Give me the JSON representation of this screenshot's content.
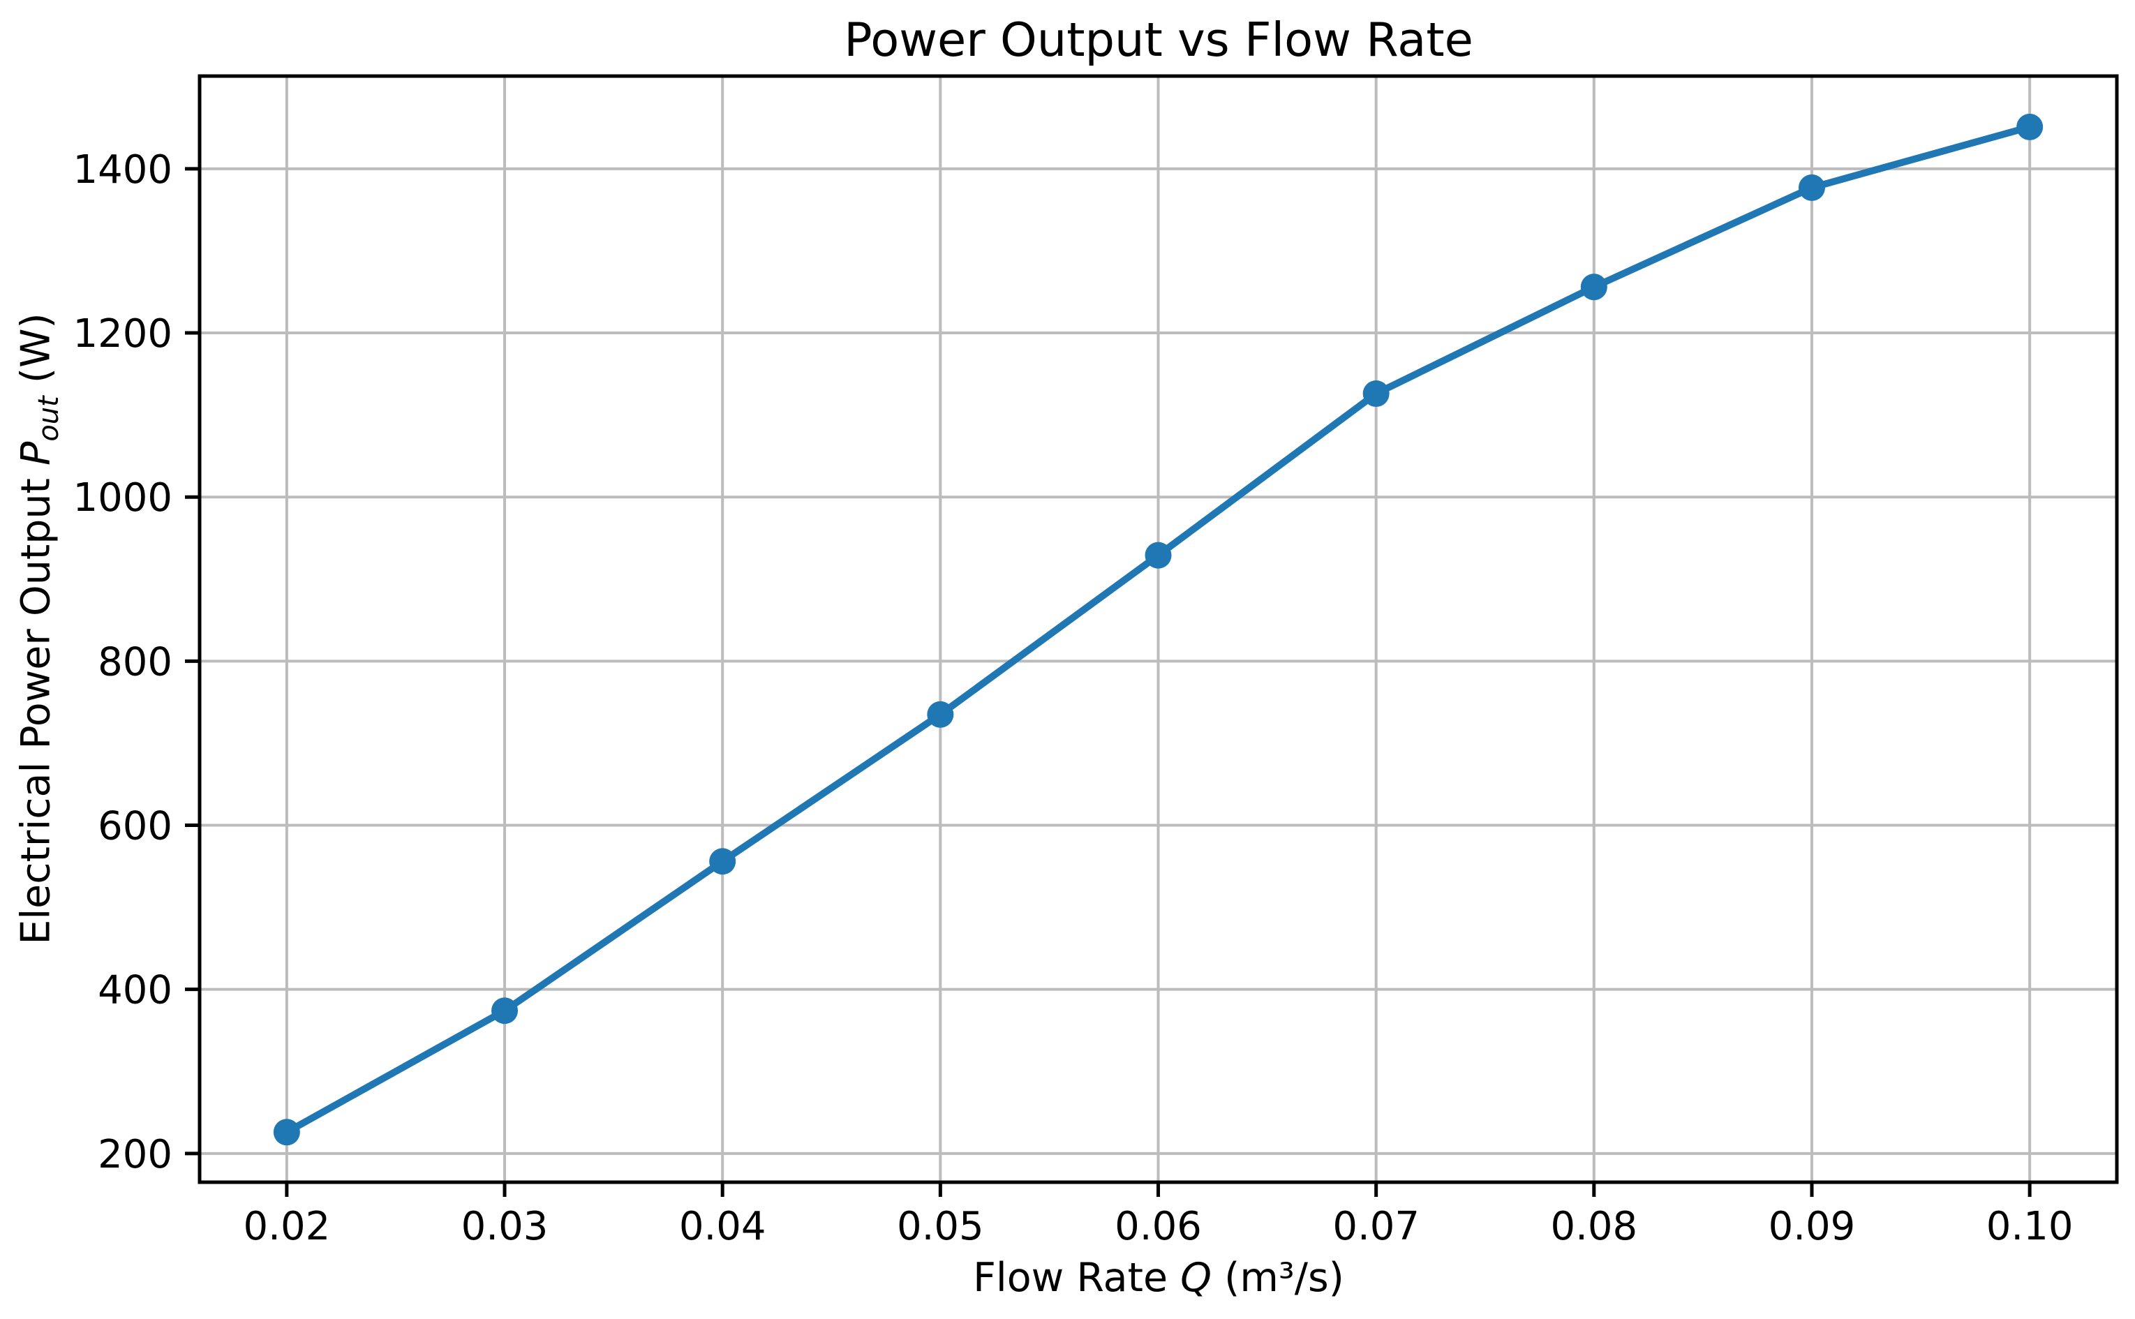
{
  "chart_data": {
    "type": "line",
    "title": "Power Output vs Flow Rate",
    "xlabel": "Flow Rate Q (m³/s)",
    "ylabel": "Electrical Power Output P_out (W)",
    "xlabel_parts": {
      "prefix": "Flow Rate ",
      "symbol": "Q",
      "suffix": " (m³/s)"
    },
    "ylabel_parts": {
      "prefix": "Electrical Power Output ",
      "symbol": "P",
      "subscript": "out",
      "suffix": " (W)"
    },
    "x": [
      0.02,
      0.03,
      0.04,
      0.05,
      0.06,
      0.07,
      0.08,
      0.09,
      0.1
    ],
    "series": [
      {
        "name": "Electrical Power Output",
        "values": [
          226,
          374,
          556,
          735,
          929,
          1126,
          1256,
          1377,
          1451
        ]
      }
    ],
    "xtick_labels": [
      "0.02",
      "0.03",
      "0.04",
      "0.05",
      "0.06",
      "0.07",
      "0.08",
      "0.09",
      "0.10"
    ],
    "yticks": [
      200,
      400,
      600,
      800,
      1000,
      1200,
      1400
    ],
    "ytick_labels": [
      "200",
      "400",
      "600",
      "800",
      "1000",
      "1200",
      "1400"
    ],
    "xlim": [
      0.016,
      0.104
    ],
    "ylim": [
      165,
      1513
    ],
    "grid": true,
    "legend": "none",
    "marker": "circle",
    "line_color": "#1f77b4",
    "marker_color": "#1f77b4",
    "grid_color": "#bcbcbc",
    "spine_color": "#000000",
    "text_color": "#000000",
    "background_color": "#ffffff"
  }
}
